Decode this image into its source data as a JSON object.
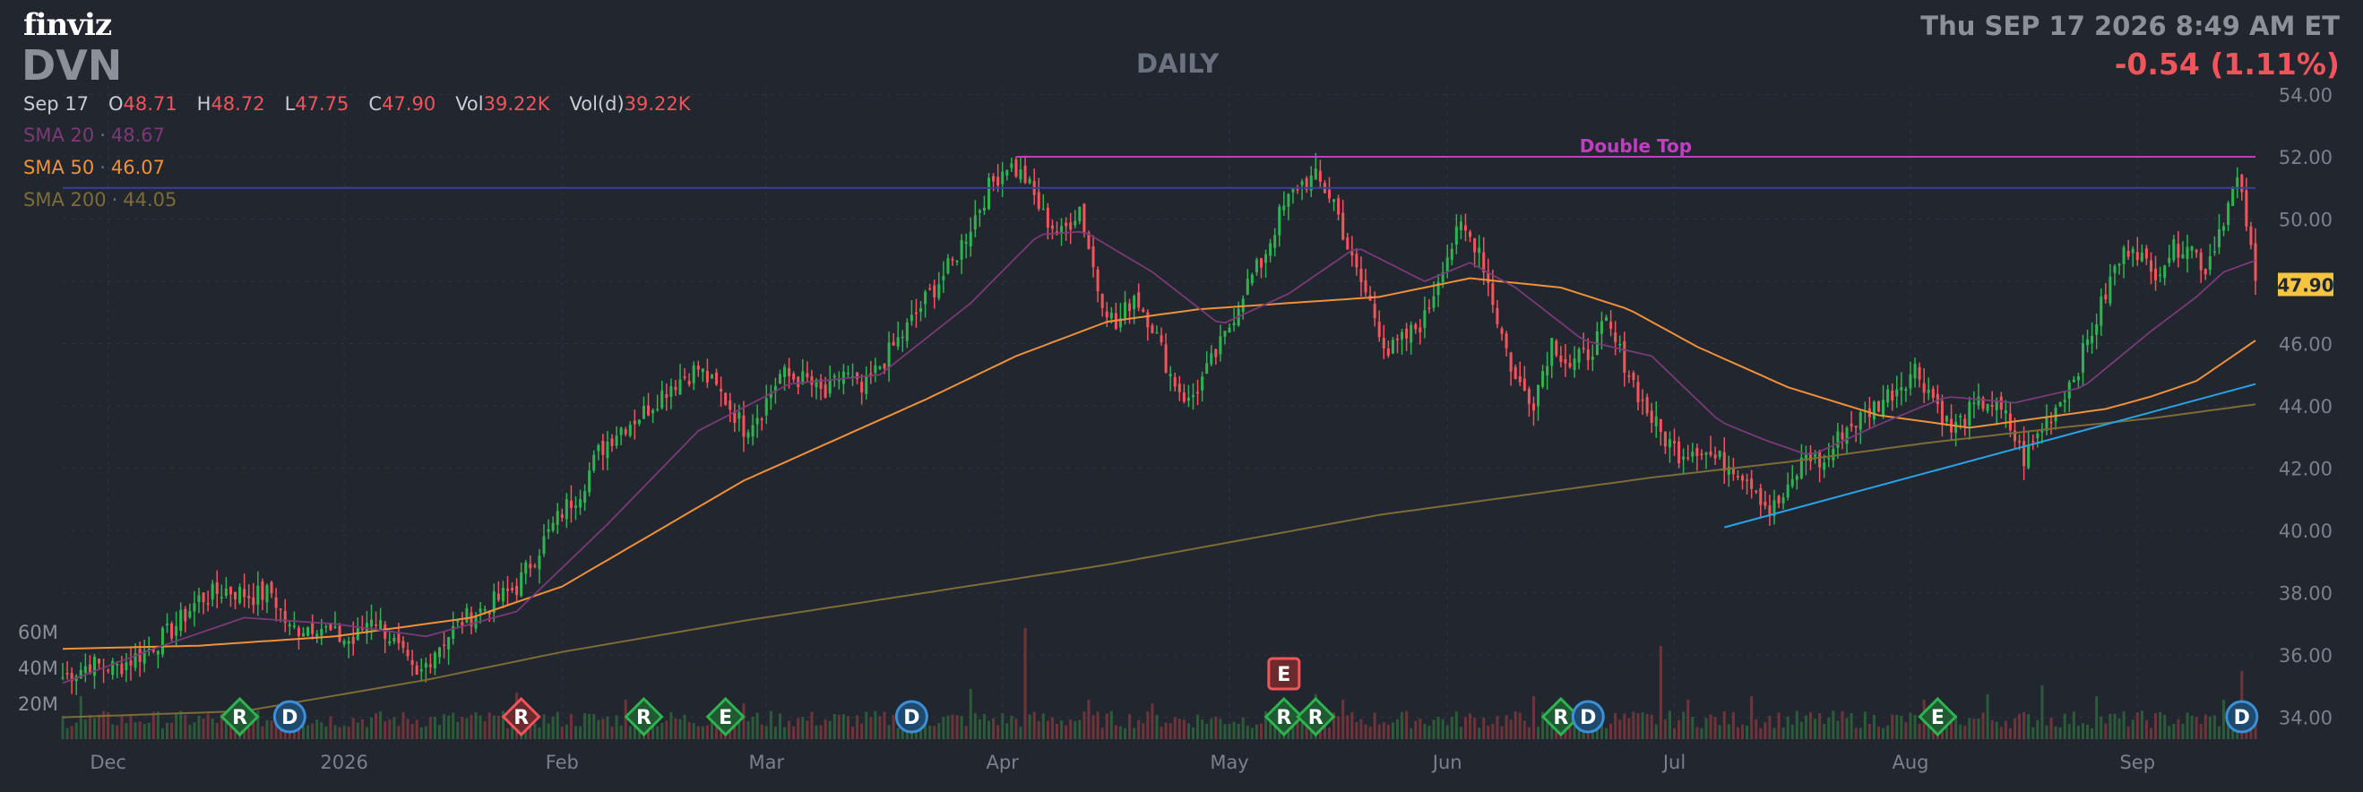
{
  "header": {
    "logo": "finviz",
    "ticker": "DVN",
    "timeframe": "DAILY",
    "datetime": "Thu SEP 17 2026 8:49 AM ET",
    "change": "-0.54 (1.11%)"
  },
  "ohlc": {
    "date": "Sep 17",
    "open_label": "O",
    "open": "48.71",
    "high_label": "H",
    "high": "48.72",
    "low_label": "L",
    "low": "47.75",
    "close_label": "C",
    "close": "47.90",
    "vol_label": "Vol",
    "vol": "39.22K",
    "vold_label": "Vol(d)",
    "vold": "39.22K"
  },
  "indicators": {
    "sma20": {
      "label": "SMA 20",
      "value": "48.67",
      "color": "#7a3a78"
    },
    "sma50": {
      "label": "SMA 50",
      "value": "46.07",
      "color": "#f0913a"
    },
    "sma200": {
      "label": "SMA 200",
      "value": "44.05",
      "color": "#7d6c36"
    }
  },
  "colors": {
    "background": "#22262f",
    "up": "#2fb350",
    "down": "#f2545b",
    "grid": "#2f343e",
    "double_top": "#c13ec4",
    "resistance": "#3a3f9e",
    "trendline": "#29a3e6",
    "price_tag": "#f5c542"
  },
  "chart_data": {
    "type": "candlestick",
    "title": "DVN",
    "ylim": [
      33.3,
      54.3
    ],
    "y_ticks": [
      "54.00",
      "52.00",
      "50.00",
      "48.00",
      "46.00",
      "44.00",
      "42.00",
      "40.00",
      "38.00",
      "36.00",
      "34.00"
    ],
    "y_tick_values": [
      54,
      52,
      50,
      48,
      46,
      44,
      42,
      40,
      38,
      36,
      34
    ],
    "x_ticks": [
      "Dec",
      "2026",
      "Feb",
      "Mar",
      "Apr",
      "May",
      "Jun",
      "Jul",
      "Aug",
      "Sep"
    ],
    "x_tick_days": [
      10,
      62,
      110,
      155,
      207,
      257,
      305,
      355,
      407,
      457
    ],
    "total_days": 483,
    "last_price": "47.90",
    "volume_axis_labels": [
      "60M",
      "40M",
      "20M"
    ],
    "volume_axis_values": [
      60,
      40,
      20
    ],
    "close_anchors": [
      [
        0,
        35.3
      ],
      [
        6,
        35.7
      ],
      [
        12,
        35.6
      ],
      [
        18,
        36.1
      ],
      [
        24,
        36.8
      ],
      [
        30,
        37.8
      ],
      [
        36,
        38.1
      ],
      [
        42,
        37.9
      ],
      [
        46,
        38.0
      ],
      [
        50,
        36.8
      ],
      [
        56,
        37.0
      ],
      [
        60,
        36.6
      ],
      [
        64,
        36.4
      ],
      [
        68,
        37.3
      ],
      [
        72,
        36.6
      ],
      [
        78,
        35.2
      ],
      [
        82,
        36.2
      ],
      [
        88,
        37.1
      ],
      [
        94,
        37.6
      ],
      [
        100,
        38.2
      ],
      [
        104,
        39.2
      ],
      [
        110,
        40.6
      ],
      [
        114,
        41.3
      ],
      [
        118,
        42.5
      ],
      [
        122,
        43.2
      ],
      [
        128,
        43.8
      ],
      [
        134,
        44.7
      ],
      [
        140,
        45.2
      ],
      [
        146,
        44.2
      ],
      [
        150,
        43.3
      ],
      [
        154,
        43.9
      ],
      [
        158,
        45.0
      ],
      [
        164,
        44.8
      ],
      [
        168,
        44.3
      ],
      [
        172,
        45.1
      ],
      [
        176,
        44.4
      ],
      [
        180,
        45.3
      ],
      [
        186,
        46.5
      ],
      [
        190,
        47.4
      ],
      [
        196,
        48.6
      ],
      [
        200,
        49.8
      ],
      [
        204,
        51.0
      ],
      [
        208,
        51.8
      ],
      [
        212,
        51.3
      ],
      [
        216,
        50.1
      ],
      [
        220,
        49.5
      ],
      [
        224,
        50.4
      ],
      [
        228,
        47.8
      ],
      [
        232,
        46.5
      ],
      [
        236,
        47.6
      ],
      [
        240,
        46.6
      ],
      [
        244,
        45.0
      ],
      [
        248,
        44.1
      ],
      [
        252,
        45.1
      ],
      [
        256,
        46.2
      ],
      [
        260,
        47.7
      ],
      [
        264,
        48.6
      ],
      [
        268,
        50.1
      ],
      [
        272,
        51.1
      ],
      [
        276,
        51.3
      ],
      [
        280,
        50.6
      ],
      [
        284,
        48.6
      ],
      [
        288,
        47.3
      ],
      [
        292,
        45.7
      ],
      [
        296,
        46.2
      ],
      [
        300,
        46.8
      ],
      [
        304,
        48.6
      ],
      [
        308,
        49.7
      ],
      [
        312,
        49.1
      ],
      [
        316,
        46.8
      ],
      [
        320,
        44.8
      ],
      [
        324,
        44.2
      ],
      [
        328,
        46.1
      ],
      [
        332,
        45.3
      ],
      [
        336,
        45.7
      ],
      [
        340,
        46.6
      ],
      [
        344,
        45.4
      ],
      [
        348,
        44.1
      ],
      [
        352,
        43.1
      ],
      [
        356,
        42.5
      ],
      [
        360,
        42.7
      ],
      [
        364,
        42.3
      ],
      [
        368,
        42.1
      ],
      [
        372,
        41.6
      ],
      [
        376,
        40.6
      ],
      [
        380,
        41.2
      ],
      [
        384,
        42.5
      ],
      [
        388,
        42.1
      ],
      [
        392,
        43.2
      ],
      [
        396,
        43.6
      ],
      [
        400,
        44.1
      ],
      [
        404,
        44.6
      ],
      [
        408,
        45.2
      ],
      [
        412,
        44.3
      ],
      [
        416,
        43.2
      ],
      [
        420,
        43.8
      ],
      [
        424,
        44.2
      ],
      [
        428,
        43.6
      ],
      [
        432,
        42.3
      ],
      [
        436,
        43.3
      ],
      [
        440,
        44.2
      ],
      [
        444,
        45.3
      ],
      [
        448,
        46.8
      ],
      [
        452,
        48.4
      ],
      [
        456,
        49.3
      ],
      [
        460,
        48.2
      ],
      [
        464,
        48.9
      ],
      [
        468,
        49.3
      ],
      [
        472,
        48.4
      ],
      [
        476,
        50.1
      ],
      [
        479,
        51.2
      ],
      [
        481,
        49.9
      ],
      [
        483,
        47.9
      ]
    ],
    "sma50_anchors": [
      [
        0,
        36.2
      ],
      [
        30,
        36.3
      ],
      [
        60,
        36.6
      ],
      [
        90,
        37.2
      ],
      [
        110,
        38.2
      ],
      [
        130,
        39.9
      ],
      [
        150,
        41.6
      ],
      [
        170,
        42.9
      ],
      [
        190,
        44.2
      ],
      [
        210,
        45.6
      ],
      [
        230,
        46.7
      ],
      [
        250,
        47.1
      ],
      [
        270,
        47.3
      ],
      [
        290,
        47.5
      ],
      [
        310,
        48.1
      ],
      [
        330,
        47.8
      ],
      [
        345,
        47.1
      ],
      [
        360,
        45.9
      ],
      [
        380,
        44.6
      ],
      [
        400,
        43.7
      ],
      [
        420,
        43.3
      ],
      [
        440,
        43.7
      ],
      [
        450,
        43.9
      ],
      [
        460,
        44.3
      ],
      [
        470,
        44.8
      ],
      [
        483,
        46.1
      ]
    ],
    "sma20_anchors": [
      [
        0,
        35.1
      ],
      [
        20,
        36.2
      ],
      [
        40,
        37.2
      ],
      [
        60,
        37.0
      ],
      [
        80,
        36.6
      ],
      [
        100,
        37.4
      ],
      [
        120,
        40.2
      ],
      [
        140,
        43.2
      ],
      [
        160,
        44.7
      ],
      [
        180,
        45.0
      ],
      [
        200,
        47.3
      ],
      [
        215,
        49.5
      ],
      [
        225,
        49.6
      ],
      [
        240,
        48.3
      ],
      [
        255,
        46.6
      ],
      [
        270,
        47.6
      ],
      [
        285,
        49.1
      ],
      [
        300,
        48.0
      ],
      [
        310,
        48.6
      ],
      [
        320,
        47.8
      ],
      [
        335,
        46.1
      ],
      [
        350,
        45.6
      ],
      [
        365,
        43.5
      ],
      [
        375,
        42.9
      ],
      [
        385,
        42.4
      ],
      [
        400,
        43.4
      ],
      [
        415,
        44.3
      ],
      [
        430,
        44.1
      ],
      [
        445,
        44.6
      ],
      [
        460,
        46.4
      ],
      [
        470,
        47.5
      ],
      [
        476,
        48.3
      ],
      [
        483,
        48.67
      ]
    ],
    "sma200_anchors": [
      [
        0,
        34.0
      ],
      [
        40,
        34.2
      ],
      [
        80,
        35.2
      ],
      [
        110,
        36.1
      ],
      [
        150,
        37.1
      ],
      [
        190,
        38.0
      ],
      [
        230,
        38.9
      ],
      [
        260,
        39.7
      ],
      [
        290,
        40.5
      ],
      [
        320,
        41.1
      ],
      [
        350,
        41.7
      ],
      [
        380,
        42.2
      ],
      [
        410,
        42.8
      ],
      [
        440,
        43.3
      ],
      [
        460,
        43.6
      ],
      [
        483,
        44.05
      ]
    ],
    "volume_spike_days": [
      [
        4,
        24
      ],
      [
        100,
        26
      ],
      [
        124,
        22
      ],
      [
        150,
        20
      ],
      [
        200,
        28
      ],
      [
        212,
        62
      ],
      [
        226,
        22
      ],
      [
        240,
        20
      ],
      [
        276,
        25
      ],
      [
        282,
        22
      ],
      [
        324,
        24
      ],
      [
        352,
        52
      ],
      [
        358,
        22
      ],
      [
        372,
        24
      ],
      [
        410,
        22
      ],
      [
        424,
        25
      ],
      [
        436,
        30
      ],
      [
        448,
        24
      ],
      [
        476,
        22
      ],
      [
        480,
        38
      ]
    ],
    "annotations": [
      {
        "type": "horizontal",
        "label": "Double Top",
        "y": 52.0,
        "x_start_day": 210,
        "x_end_day": 483,
        "color": "#c13ec4"
      },
      {
        "type": "horizontal",
        "label": "",
        "y": 51.0,
        "x_start_day": 0,
        "x_end_day": 483,
        "color": "#3a3f9e"
      },
      {
        "type": "trendline",
        "label": "",
        "points": [
          [
            366,
            40.1
          ],
          [
            483,
            44.7
          ]
        ],
        "color": "#29a3e6"
      }
    ],
    "event_markers": [
      {
        "label": "R",
        "day": 39,
        "kind": "green"
      },
      {
        "label": "D",
        "day": 50,
        "kind": "blue"
      },
      {
        "label": "R",
        "day": 101,
        "kind": "red"
      },
      {
        "label": "R",
        "day": 128,
        "kind": "green"
      },
      {
        "label": "E",
        "day": 146,
        "kind": "green"
      },
      {
        "label": "D",
        "day": 187,
        "kind": "blue"
      },
      {
        "label": "E",
        "day": 269,
        "kind": "red",
        "row": "upper"
      },
      {
        "label": "R",
        "day": 269,
        "kind": "green"
      },
      {
        "label": "R",
        "day": 276,
        "kind": "green"
      },
      {
        "label": "R",
        "day": 330,
        "kind": "green"
      },
      {
        "label": "D",
        "day": 336,
        "kind": "blue"
      },
      {
        "label": "E",
        "day": 413,
        "kind": "green"
      },
      {
        "label": "D",
        "day": 480,
        "kind": "blue"
      }
    ]
  }
}
